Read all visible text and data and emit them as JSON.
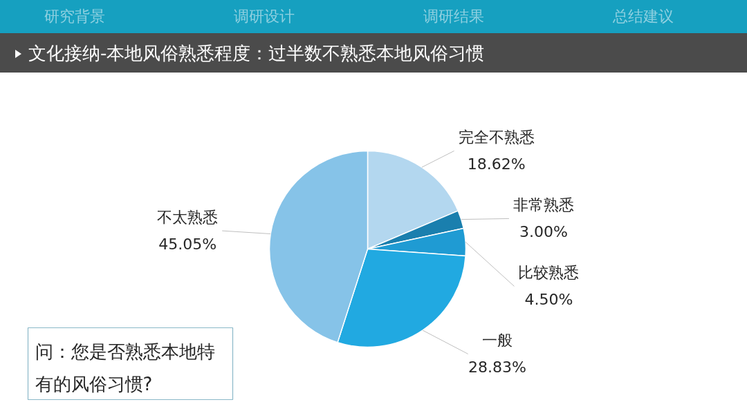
{
  "chart_data": {
    "type": "pie",
    "title": "文化接纳-本地风俗熟悉程度：过半数不熟悉本地风俗习惯",
    "categories": [
      "完全不熟悉",
      "非常熟悉",
      "比较熟悉",
      "一般",
      "不太熟悉"
    ],
    "values": [
      18.62,
      3.0,
      4.5,
      28.83,
      45.05
    ],
    "colors": [
      "#b3d7ef",
      "#1a7fae",
      "#1f9bd3",
      "#21a9e1",
      "#86c3e8"
    ],
    "value_labels": [
      "18.62%",
      "3.00%",
      "4.50%",
      "28.83%",
      "45.05%"
    ],
    "annotations": [
      "研究背景",
      "调研设计",
      "调研结果",
      "总结建议",
      "问：您是否熟悉本地特有的风俗习惯?"
    ]
  }
}
